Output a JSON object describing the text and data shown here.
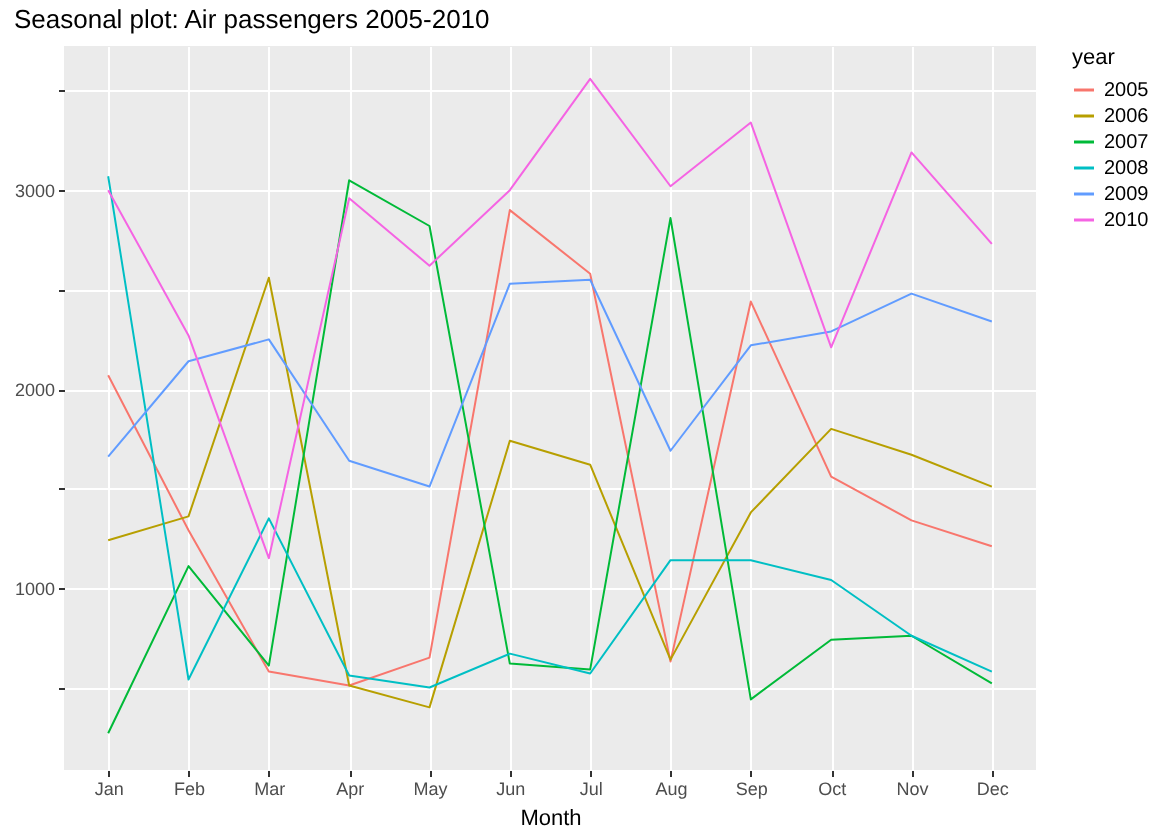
{
  "chart_data": {
    "type": "line",
    "title": "Seasonal plot: Air passengers 2005-2010",
    "xlabel": "Month",
    "legend_title": "year",
    "legend": "right",
    "grid": true,
    "categories": [
      "Jan",
      "Feb",
      "Mar",
      "Apr",
      "May",
      "Jun",
      "Jul",
      "Aug",
      "Sep",
      "Oct",
      "Nov",
      "Dec"
    ],
    "ylim": [
      85,
      3725
    ],
    "yticks": [
      {
        "value": 500,
        "label": null
      },
      1000,
      {
        "value": 1500,
        "label": null
      },
      2000,
      {
        "value": 2500,
        "label": null
      },
      3000,
      {
        "value": 3500,
        "label": null
      }
    ],
    "series": [
      {
        "name": "2005",
        "color": "#f8766d",
        "values": [
          2070,
          1290,
          580,
          510,
          650,
          2900,
          2580,
          630,
          2440,
          1560,
          1340,
          1210
        ]
      },
      {
        "name": "2006",
        "color": "#b79f00",
        "values": [
          1240,
          1360,
          2560,
          510,
          400,
          1740,
          1620,
          640,
          1380,
          1800,
          1670,
          1510
        ]
      },
      {
        "name": "2007",
        "color": "#00ba38",
        "values": [
          270,
          1110,
          610,
          3050,
          2820,
          620,
          590,
          2860,
          440,
          740,
          760,
          520
        ]
      },
      {
        "name": "2008",
        "color": "#00bfc4",
        "values": [
          3070,
          540,
          1350,
          560,
          500,
          670,
          570,
          1140,
          1140,
          1040,
          760,
          580
        ]
      },
      {
        "name": "2009",
        "color": "#619cff",
        "values": [
          1660,
          2140,
          2250,
          1640,
          1510,
          2530,
          2550,
          1690,
          2220,
          2290,
          2480,
          2340
        ]
      },
      {
        "name": "2010",
        "color": "#f564e3",
        "values": [
          3000,
          2270,
          1150,
          2960,
          2620,
          3000,
          3560,
          3020,
          3340,
          2210,
          3190,
          2730
        ]
      }
    ]
  }
}
